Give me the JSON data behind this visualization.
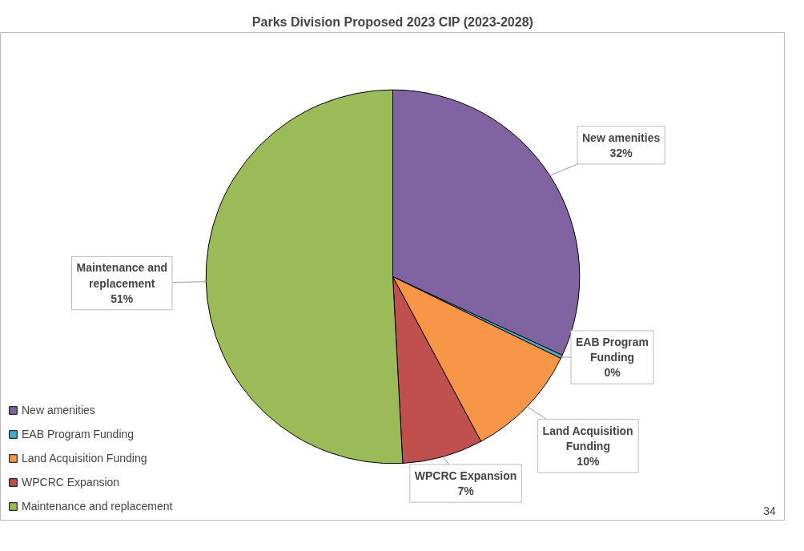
{
  "chart_data": {
    "type": "pie",
    "title": "Parks Division Proposed 2023 CIP (2023-2028)",
    "categories": [
      "New amenities",
      "EAB Program Funding",
      "Land Acquisition Funding",
      "WPCRC Expansion",
      "Maintenance and replacement"
    ],
    "values": [
      32,
      0.3,
      10,
      7,
      51
    ],
    "colors": [
      "#8064a2",
      "#4bacc6",
      "#f79646",
      "#c0504d",
      "#9bbb59"
    ],
    "value_labels": [
      "32%",
      "0%",
      "10%",
      "7%",
      "51%"
    ],
    "legend": "bottom left",
    "annotations": [
      "34"
    ]
  }
}
